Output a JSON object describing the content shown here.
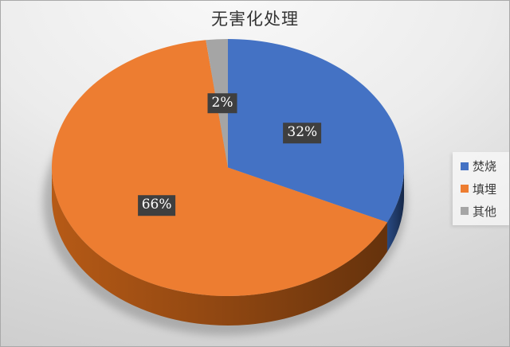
{
  "chart_data": {
    "type": "pie",
    "effect": "3d",
    "title": "无害化处理",
    "legend_position": "right",
    "start_angle_deg": 0,
    "series": [
      {
        "label": "焚烧",
        "value": 32,
        "data_label": "32%",
        "color": "#4472C4",
        "side_color": "#1F3864"
      },
      {
        "label": "填埋",
        "value": 66,
        "data_label": "66%",
        "color": "#ED7D31",
        "side_color": "#8C4511"
      },
      {
        "label": "其他",
        "value": 2,
        "data_label": "2%",
        "color": "#A5A5A5"
      }
    ],
    "data_label_bg": "#3F3F3F",
    "data_label_color": "#FFFFFF",
    "background_top": "#F9F9F9",
    "background_bottom": "#C6C6C6"
  }
}
